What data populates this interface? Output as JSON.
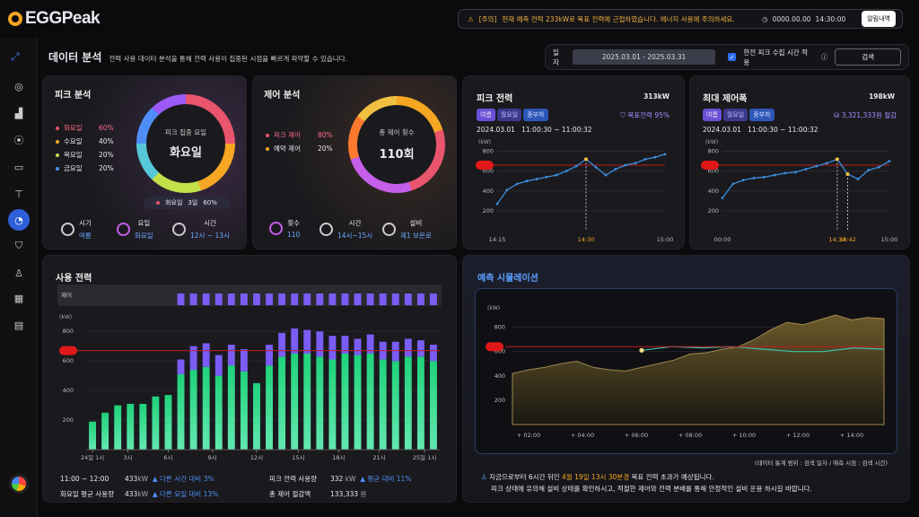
{
  "header": {
    "logo": "EGGPeak",
    "notice_prefix": "[주의]",
    "notice_text": "현재 예측 전력 233kW로 목표 전력에 근접하였습니다. 에너지 사용에 주의하세요.",
    "clock_date": "0000.00.00",
    "clock_time": "14:30:00",
    "alarm_label": "알림내역"
  },
  "page": {
    "title": "데이터 분석",
    "subtitle": "전력 사용 데이터 분석을 통해 전력 사용이 집중된 시점을 빠르게 파악할 수 있습니다."
  },
  "filter": {
    "date_label": "일자",
    "date_range": "2025.03.01 - 2025.03.31",
    "checkbox_label": "한전 피크 수집 시간 적용",
    "search_label": "검색"
  },
  "peak_analysis": {
    "title": "피크 분석",
    "legend": [
      {
        "label": "화요일",
        "value": "60%",
        "color": "#e8556d",
        "active": true
      },
      {
        "label": "수요일",
        "value": "40%",
        "color": "#f5a623"
      },
      {
        "label": "목요일",
        "value": "20%",
        "color": "#c3e04a"
      },
      {
        "label": "금요일",
        "value": "20%",
        "color": "#4f8ef7"
      }
    ],
    "ring_caption": "피크 집중 요일",
    "ring_value": "화요일",
    "badge_day": "화요일",
    "badge_count": "3일",
    "badge_pct": "60%",
    "mini": [
      {
        "label": "시기",
        "value": "여름"
      },
      {
        "label": "요일",
        "value": "화요일"
      },
      {
        "label": "시간",
        "value": "12시 ~ 13시"
      }
    ]
  },
  "control_analysis": {
    "title": "제어 분석",
    "legend": [
      {
        "label": "피크 제어",
        "value": "80%",
        "color": "#e8556d",
        "active": true
      },
      {
        "label": "예약 제어",
        "value": "20%",
        "color": "#f5a623"
      }
    ],
    "ring_caption": "총 제어 횟수",
    "ring_value": "110회",
    "mini": [
      {
        "label": "횟수",
        "value": "110"
      },
      {
        "label": "시간",
        "value": "14시~15시"
      },
      {
        "label": "설비",
        "value": "제1 보온로"
      }
    ]
  },
  "peak_power": {
    "title": "피크 전력",
    "value": "313kW",
    "tags": [
      "여름",
      "월요일",
      "중부하"
    ],
    "target_label": "목표전력 95%",
    "date": "2024.03.01",
    "time_range": "11:00:30 ~ 11:00:32",
    "unit": "(kW)",
    "yticks": [
      "800",
      "600",
      "400",
      "200"
    ],
    "xticks": [
      "14:15",
      "14:30",
      "15:00"
    ]
  },
  "max_control": {
    "title": "최대 제어폭",
    "value": "198kW",
    "tags": [
      "여름",
      "월요일",
      "중부하"
    ],
    "saving": "3,321,333원 절감",
    "date": "2024.03.01",
    "time_range": "11:00:30 ~ 11:00:32",
    "unit": "(kW)",
    "yticks": [
      "800",
      "600",
      "400",
      "200"
    ],
    "xticks": [
      "00:00",
      "14:30",
      "14:42",
      "15:00"
    ]
  },
  "usage": {
    "title": "사용 전력",
    "control_label": "제어",
    "unit": "(kW)",
    "yticks": [
      "800",
      "600",
      "400",
      "200"
    ],
    "xticks": [
      "24일 1시",
      "3시",
      "6시",
      "9시",
      "12시",
      "15시",
      "18시",
      "21시",
      "25일 1시"
    ],
    "s1_label": "11:00 ~ 12:00",
    "s1_value": "433",
    "s1_unit": "kW",
    "s1_cmp": "다른 시간 대비 3%",
    "s2_label": "화요일 평균 사용량",
    "s2_value": "433",
    "s2_unit": "kW",
    "s2_cmp": "다른 요일 대비 13%",
    "s3_label": "피크 전력 사용량",
    "s3_value": "332",
    "s3_unit": "kW",
    "s3_cmp": "평균 대비 11%",
    "s4_label": "총 제어 절감액",
    "s4_value": "133,333",
    "s4_unit": "원"
  },
  "forecast": {
    "title": "예측 시뮬레이션",
    "unit": "(kW)",
    "yticks": [
      "800",
      "600",
      "400",
      "200"
    ],
    "xticks": [
      "+ 02:00",
      "+ 04:00",
      "+ 06:00",
      "+ 08:00",
      "+ 10:00",
      "+ 12:00",
      "+ 14:00"
    ],
    "range_note": "(데이터 통계 범위 : 검색 일자 / 예측 시점 : 검색 시간)",
    "msg1_a": "지금으로부터 6시간 뒤인",
    "msg1_b": "4월 19일 13시 30분경",
    "msg1_c": "목표 전력 초과가 예상됩니다.",
    "msg2": "피크 상태에 유의해 설비 상태를 확인하시고, 적절한 제어와 전력 분배를 통해 안정적인 설비 운용 하시길 바랍니다."
  },
  "chart_data": [
    {
      "type": "line",
      "title": "피크 전력",
      "x": [
        "14:15",
        "",
        "",
        "",
        "",
        "",
        "",
        "",
        "",
        "14:30",
        "",
        "",
        "",
        "",
        "",
        "",
        "",
        "15:00"
      ],
      "values": [
        270,
        410,
        470,
        500,
        520,
        540,
        560,
        600,
        650,
        720,
        640,
        560,
        620,
        660,
        680,
        720,
        740,
        770
      ],
      "target": 660,
      "highlight_index": 9
    },
    {
      "type": "line",
      "title": "최대 제어폭",
      "x": [
        "00:00",
        "",
        "",
        "",
        "",
        "",
        "",
        "",
        "",
        "",
        "",
        "14:30",
        "14:42",
        "",
        "",
        "",
        "15:00"
      ],
      "values": [
        330,
        470,
        510,
        530,
        540,
        560,
        580,
        590,
        620,
        650,
        680,
        720,
        570,
        520,
        610,
        640,
        700
      ],
      "target": 660,
      "highlight_index": [
        11,
        12
      ]
    },
    {
      "type": "bar",
      "title": "사용 전력",
      "values": [
        190,
        250,
        300,
        310,
        310,
        360,
        370,
        510,
        540,
        560,
        500,
        570,
        530,
        450,
        570,
        630,
        650,
        650,
        630,
        610,
        650,
        640,
        650,
        610,
        600,
        630,
        630,
        600
      ],
      "control": [
        0,
        0,
        0,
        0,
        0,
        0,
        0,
        100,
        160,
        160,
        140,
        140,
        150,
        0,
        140,
        160,
        170,
        160,
        170,
        160,
        120,
        110,
        130,
        120,
        130,
        120,
        110,
        110
      ],
      "control_strip": [
        0,
        0,
        0,
        0,
        0,
        0,
        0,
        1,
        1,
        1,
        1,
        1,
        1,
        1,
        1,
        1,
        1,
        1,
        1,
        1,
        1,
        1,
        1,
        1,
        1,
        1,
        1,
        1
      ],
      "target": 670
    },
    {
      "type": "area",
      "title": "예측 시뮬레이션",
      "actual": [
        420,
        450,
        470,
        500,
        520,
        470,
        450,
        440,
        470,
        500,
        530,
        580,
        590,
        620,
        640,
        700,
        780,
        840,
        820,
        860,
        900,
        860,
        880,
        870
      ],
      "forecast": [
        610,
        640,
        630,
        640,
        620,
        600,
        600,
        630,
        620
      ],
      "target": 640
    }
  ]
}
